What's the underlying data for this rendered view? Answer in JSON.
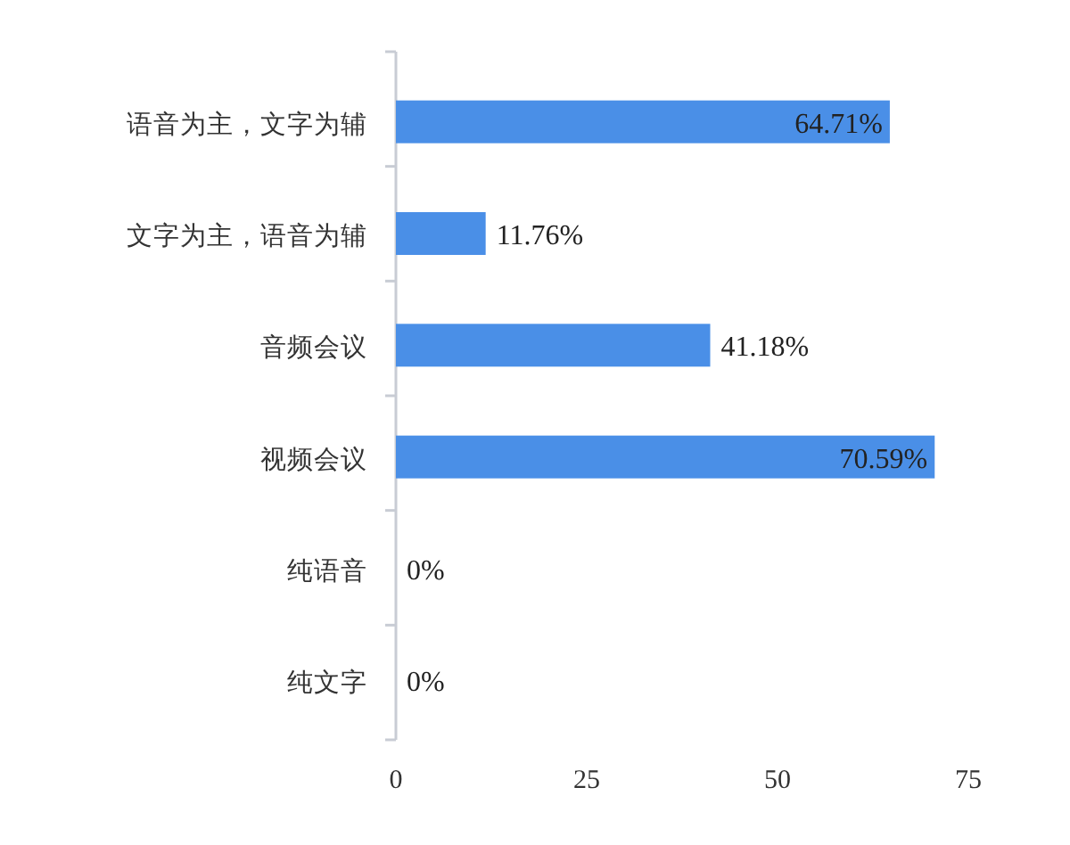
{
  "chart_data": {
    "type": "bar",
    "orientation": "horizontal",
    "categories": [
      "语音为主，文字为辅",
      "文字为主，语音为辅",
      "音频会议",
      "视频会议",
      "纯语音",
      "纯文字"
    ],
    "values": [
      64.71,
      11.76,
      41.18,
      70.59,
      0,
      0
    ],
    "value_labels": [
      "64.71%",
      "11.76%",
      "41.18%",
      "70.59%",
      "0%",
      "0%"
    ],
    "color": "#4a8fe7",
    "xlim": [
      0,
      75
    ],
    "xticks": [
      0,
      25,
      50,
      75
    ],
    "grid": false
  }
}
